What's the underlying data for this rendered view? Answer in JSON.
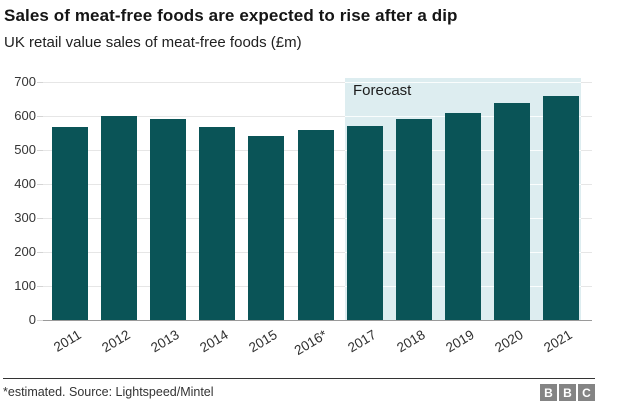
{
  "header": {
    "title": "Sales of meat-free foods are expected to rise after a dip",
    "subtitle": "UK retail value sales of meat-free foods (£m)"
  },
  "chart_data": {
    "type": "bar",
    "title": "Sales of meat-free foods are expected to rise after a dip",
    "subtitle": "UK retail value sales of meat-free foods (£m)",
    "categories": [
      "2011",
      "2012",
      "2013",
      "2014",
      "2015",
      "2016*",
      "2017",
      "2018",
      "2019",
      "2020",
      "2021"
    ],
    "values": [
      568,
      601,
      592,
      568,
      540,
      560,
      572,
      590,
      608,
      638,
      660
    ],
    "xlabel": "",
    "ylabel": "",
    "ylim": [
      0,
      700
    ],
    "yticks": [
      0,
      100,
      200,
      300,
      400,
      500,
      600,
      700
    ],
    "grid": true,
    "legend": "none",
    "forecast": {
      "label": "Forecast",
      "start_category": "2017",
      "start_index": 6
    },
    "colors": {
      "bar": "#0a5457",
      "forecast_bg": "#ddedf0",
      "gridline": "#e6e6e6",
      "axis": "#9a9a9a"
    }
  },
  "footer": {
    "note": "*estimated. Source: Lightspeed/Mintel",
    "logo_letters": [
      "B",
      "B",
      "C"
    ]
  }
}
